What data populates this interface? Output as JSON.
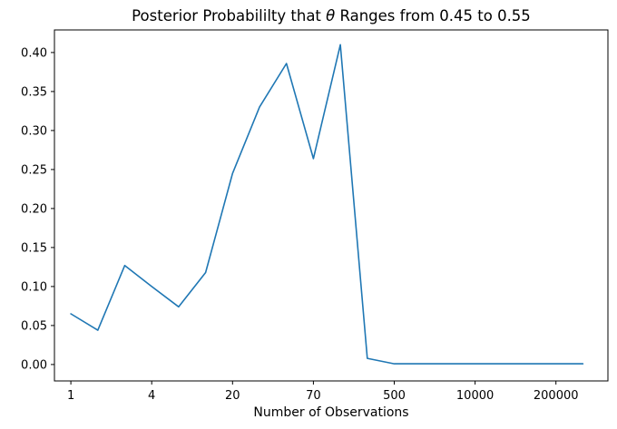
{
  "figure": {
    "title": {
      "prefix": "Posterior Probabililty that ",
      "symbol": "θ",
      "suffix": " Ranges from 0.45 to 0.55"
    }
  },
  "chart_data": {
    "type": "line",
    "title": "Posterior Probabililty that θ Ranges from 0.45 to 0.55",
    "xlabel": "Number of Observations",
    "ylabel": "",
    "x_tick_labels": [
      "1",
      "4",
      "20",
      "70",
      "500",
      "10000",
      "200000"
    ],
    "x_tick_indices": [
      0,
      3,
      6,
      9,
      12,
      15,
      18
    ],
    "y_tick_labels": [
      "0.00",
      "0.05",
      "0.10",
      "0.15",
      "0.20",
      "0.25",
      "0.30",
      "0.35",
      "0.40"
    ],
    "y_tick_values": [
      0.0,
      0.05,
      0.1,
      0.15,
      0.2,
      0.25,
      0.3,
      0.35,
      0.4
    ],
    "x": [
      0,
      1,
      2,
      3,
      4,
      5,
      6,
      7,
      8,
      9,
      10,
      11,
      12,
      13,
      14,
      15,
      16,
      17,
      18,
      19
    ],
    "values": [
      0.065,
      0.044,
      0.127,
      0.1,
      0.074,
      0.118,
      0.245,
      0.33,
      0.386,
      0.264,
      0.41,
      0.008,
      0.001,
      0.001,
      0.001,
      0.001,
      0.001,
      0.001,
      0.001,
      0.001
    ],
    "xlim_index": [
      -0.61,
      19.93
    ],
    "ylim": [
      -0.021,
      0.429
    ],
    "line_color": "#1f77b4",
    "axis_color": "#000000",
    "grid": false,
    "legend": null
  }
}
